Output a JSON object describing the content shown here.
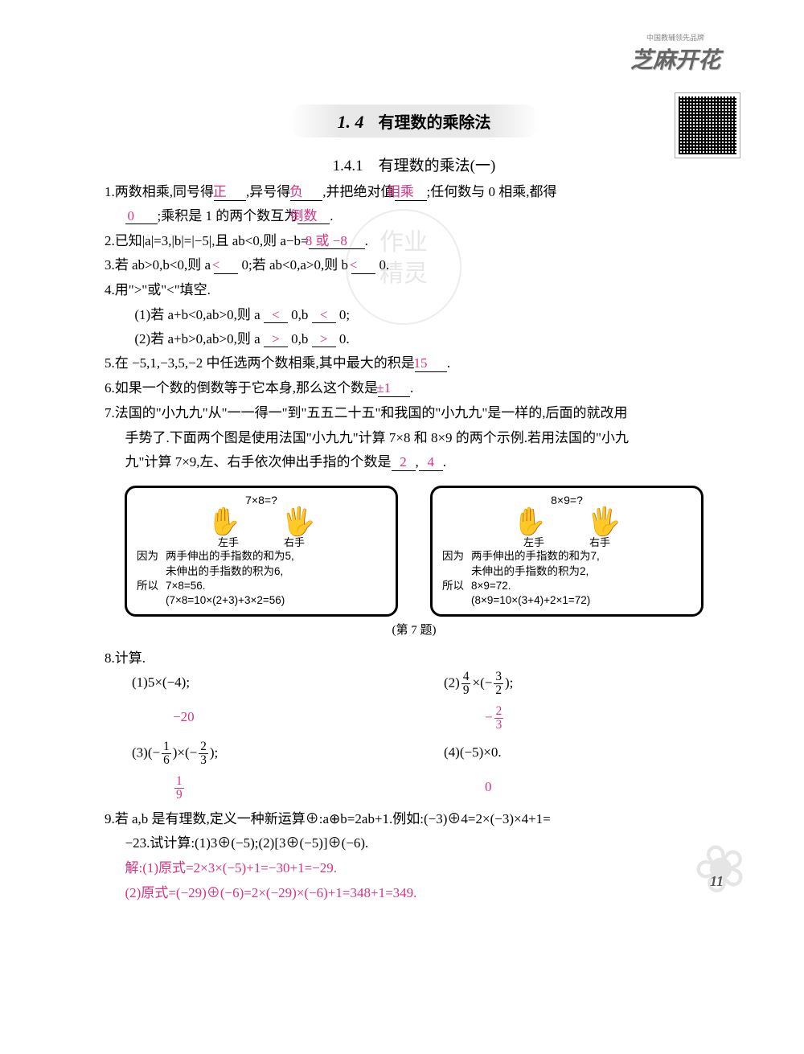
{
  "brand": {
    "line1": "中国教辅领先品牌",
    "line2": "芝麻开花"
  },
  "section": {
    "number": "1. 4",
    "name": "有理数的乘除法"
  },
  "subsection": {
    "title": "1.4.1　有理数的乘法(一)"
  },
  "page_number": "11",
  "colors": {
    "answer": "#d63384",
    "text": "#000000",
    "bg": "#ffffff",
    "title_bg": "#e8e8e8"
  },
  "q1": {
    "t1": "1.两数相乘,同号得",
    "a1": "正",
    "t2": ",异号得",
    "a2": "负",
    "t3": ",并把绝对值",
    "a3": "相乘",
    "t4": ";任何数与 0 相乘,都得",
    "a4": "0",
    "t5": ";乘积是 1 的两个数互为",
    "a5": "倒数",
    "t6": "."
  },
  "q2": {
    "t1": "2.已知|a|=3,|b|=|−5|,且 ab<0,则 a−b=",
    "a1": "8 或 −8",
    "t2": "."
  },
  "q3": {
    "t1": "3.若 ab>0,b<0,则 a ",
    "a1": "<",
    "t2": " 0;若 ab<0,a>0,则 b ",
    "a2": "<",
    "t3": " 0."
  },
  "q4": {
    "head": "4.用\">\"或\"<\"填空.",
    "l1a": "(1)若 a+b<0,ab>0,则 a ",
    "a11": "<",
    "l1b": " 0,b ",
    "a12": "<",
    "l1c": " 0;",
    "l2a": "(2)若 a+b>0,ab>0,则 a ",
    "a21": ">",
    "l2b": " 0,b ",
    "a22": ">",
    "l2c": " 0."
  },
  "q5": {
    "t1": "5.在 −5,1,−3,5,−2 中任选两个数相乘,其中最大的积是",
    "a1": "15",
    "t2": "."
  },
  "q6": {
    "t1": "6.如果一个数的倒数等于它本身,那么这个数是",
    "a1": "±1",
    "t2": "."
  },
  "q7": {
    "l1": "7.法国的\"小九九\"从\"一一得一\"到\"五五二十五\"和我国的\"小九九\"是一样的,后面的就改用",
    "l2": "手势了.下面两个图是使用法国\"小九九\"计算 7×8 和 8×9 的两个示例.若用法国的\"小九",
    "l3a": "九\"计算 7×9,左、右手依次伸出手指的个数是",
    "a1": "2",
    "sep": ",",
    "a2": "4",
    "l3b": "."
  },
  "box1": {
    "title": "7×8=?",
    "left_label": "左手",
    "right_label": "右手",
    "because_label": "因为",
    "because1": "两手伸出的手指数的和为5,",
    "because2": "未伸出的手指数的积为6,",
    "so_label": "所以",
    "so1": "7×8=56.",
    "so2": "(7×8=10×(2+3)+3×2=56)"
  },
  "box2": {
    "title": "8×9=?",
    "left_label": "左手",
    "right_label": "右手",
    "because_label": "因为",
    "because1": "两手伸出的手指数的和为7,",
    "because2": "未伸出的手指数的积为2,",
    "so_label": "所以",
    "so1": "8×9=72.",
    "so2": "(8×9=10×(3+4)+2×1=72)"
  },
  "caption7": "(第 7 题)",
  "q8": {
    "head": "8.计算.",
    "p1": "(1)5×(−4);",
    "a1": "−20",
    "p2_pre": "(2)",
    "p2_n1": "4",
    "p2_d1": "9",
    "p2_mid": "×(−",
    "p2_n2": "3",
    "p2_d2": "2",
    "p2_suf": ");",
    "a2_sign": "−",
    "a2_n": "2",
    "a2_d": "3",
    "p3_pre": "(3)(−",
    "p3_n1": "1",
    "p3_d1": "6",
    "p3_mid": ")×(−",
    "p3_n2": "2",
    "p3_d2": "3",
    "p3_suf": ");",
    "a3_n": "1",
    "a3_d": "9",
    "p4": "(4)(−5)×0.",
    "a4": "0"
  },
  "q9": {
    "l1": "9.若 a,b 是有理数,定义一种新运算⊕:a⊕b=2ab+1.例如:(−3)⊕4=2×(−3)×4+1=",
    "l2": "−23.试计算:(1)3⊕(−5);(2)[3⊕(−5)]⊕(−6).",
    "sol1": "解:(1)原式=2×3×(−5)+1=−30+1=−29.",
    "sol2": "(2)原式=(−29)⊕(−6)=2×(−29)×(−6)+1=348+1=349."
  }
}
